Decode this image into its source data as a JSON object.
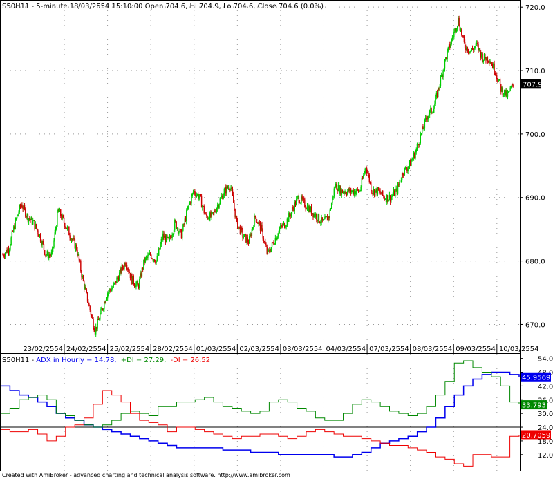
{
  "header": {
    "price_title": "S50H11 - 5-minute 18/03/2554 15:10:00 Open 704.6, Hi 704.9, Lo 704.6, Close 704.6 (0.0%)",
    "adx_prefix": "S50H11 - ",
    "adx_label": "ADX in Hourly = 14.78,",
    "pdi_label": "+DI = 27.29,",
    "mdi_label": "-DI = 26.52"
  },
  "footer": {
    "credit": "Created with AmiBroker - advanced charting and technical analysis software. http://www.amibroker.com"
  },
  "colors": {
    "up_candle": "#00cc00",
    "down_candle": "#cc0000",
    "adx": "#0000ee",
    "pdi": "#008800",
    "mdi": "#ee0000",
    "last_price_tag_bg": "#000000",
    "adx_tag_bg": "#0000ee",
    "pdi_tag_bg": "#008800",
    "mdi_tag_bg": "#ee0000"
  },
  "chart_data": [
    {
      "type": "candlestick",
      "title": "S50H11 - 5-minute 18/03/2554 15:10:00 Open 704.6, Hi 704.9, Lo 704.6, Close 704.6 (0.0%)",
      "ylim": [
        667,
        721
      ],
      "y_ticks": [
        "670.0",
        "680.0",
        "690.0",
        "700.0",
        "710.0",
        "720.0"
      ],
      "last_price": "707.9",
      "dates": [
        "23/02/2554",
        "24/02/2554",
        "25/02/2554",
        "28/02/2554",
        "01/03/2554",
        "02/03/2554",
        "03/03/2554",
        "04/03/2554",
        "07/03/2554",
        "08/03/2554",
        "09/03/2554",
        "10/03/2554"
      ],
      "price_path": [
        681,
        682,
        686,
        689,
        687,
        686,
        684,
        681,
        681,
        688,
        686,
        684,
        682,
        677,
        673,
        669,
        672,
        675,
        676,
        678,
        680,
        677,
        676,
        680,
        681,
        680,
        684,
        683,
        686,
        684,
        688,
        691,
        690,
        687,
        687,
        689,
        691,
        692,
        686,
        684,
        683,
        687,
        685,
        681,
        683,
        685,
        686,
        688,
        690,
        689,
        688,
        687,
        686,
        687,
        692,
        691,
        691,
        691,
        691,
        695,
        691,
        691,
        690,
        690,
        691,
        694,
        695,
        697,
        700,
        703,
        704,
        708,
        712,
        715,
        718,
        714,
        713,
        714,
        712,
        712,
        710,
        707,
        706,
        708
      ]
    },
    {
      "type": "line",
      "title": "ADX in Hourly",
      "ylim": [
        5,
        56
      ],
      "y_ticks": [
        "12.0",
        "18.0",
        "24.0",
        "30.0",
        "36.0",
        "42.0",
        "48.0",
        "54.0"
      ],
      "reference_line": 24,
      "last_values": {
        "adx": "45.9569",
        "pdi": "33.793",
        "mdi": "20.7059"
      },
      "series": [
        {
          "name": "ADX",
          "values": [
            42,
            40,
            38,
            37,
            35,
            33,
            30,
            28,
            27,
            25,
            24,
            23,
            22,
            21,
            20,
            19,
            18,
            17,
            16,
            15,
            15,
            15,
            15,
            15,
            14,
            14,
            14,
            13,
            13,
            13,
            12,
            12,
            12,
            12,
            12,
            12,
            11,
            11,
            12,
            13,
            15,
            17,
            18,
            19,
            20,
            22,
            24,
            28,
            33,
            38,
            42,
            45,
            47,
            48,
            48,
            47,
            46
          ]
        },
        {
          "name": "+DI",
          "values": [
            30,
            32,
            36,
            37,
            38,
            36,
            30,
            29,
            27,
            25,
            24,
            25,
            27,
            30,
            31,
            30,
            29,
            33,
            33,
            35,
            35,
            36,
            37,
            35,
            33,
            32,
            31,
            30,
            31,
            35,
            36,
            35,
            32,
            31,
            28,
            27,
            27,
            30,
            34,
            36,
            35,
            33,
            31,
            30,
            29,
            30,
            33,
            38,
            44,
            52,
            53,
            50,
            48,
            46,
            42,
            35,
            34
          ]
        },
        {
          "name": "-DI",
          "values": [
            23,
            22,
            22,
            23,
            21,
            18,
            20,
            24,
            25,
            28,
            34,
            40,
            38,
            35,
            30,
            27,
            26,
            25,
            22,
            24,
            24,
            23,
            22,
            21,
            20,
            19,
            20,
            20,
            21,
            21,
            20,
            19,
            20,
            22,
            23,
            22,
            21,
            20,
            20,
            19,
            18,
            17,
            16,
            16,
            15,
            14,
            13,
            11,
            10,
            8,
            7,
            12,
            12,
            11,
            11,
            20,
            20.7
          ]
        }
      ]
    }
  ]
}
